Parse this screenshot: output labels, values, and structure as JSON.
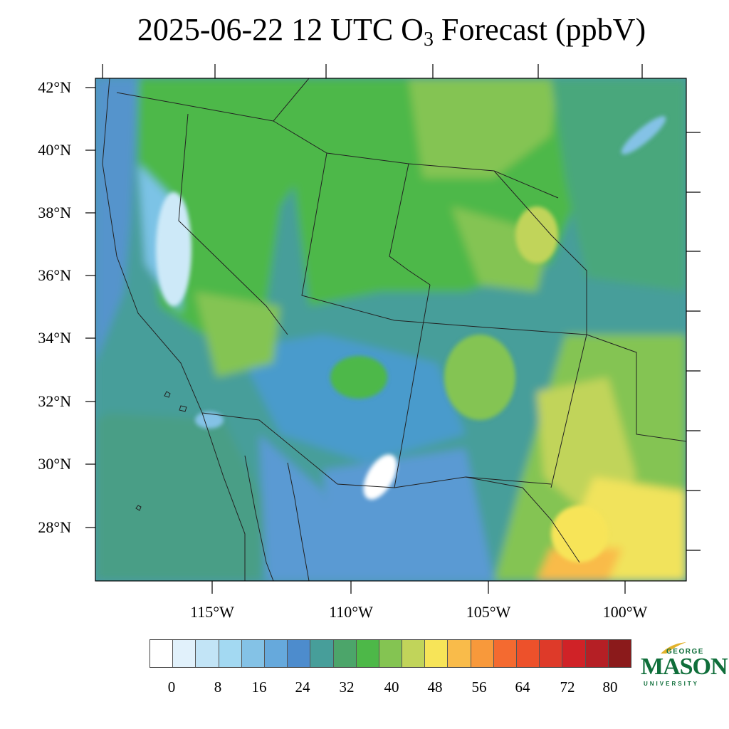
{
  "title": {
    "main": "2025-06-22 12 UTC O",
    "subscript": "3",
    "tail": " Forecast (ppbV)"
  },
  "lat_labels": [
    "42°N",
    "40°N",
    "38°N",
    "36°N",
    "34°N",
    "32°N",
    "30°N",
    "28°N"
  ],
  "lon_labels": [
    "115°W",
    "110°W",
    "105°W",
    "100°W"
  ],
  "colorbar": {
    "colors": [
      "#ffffff",
      "#e1f1fb",
      "#c2e4f6",
      "#a3d9f2",
      "#84c2e6",
      "#66a9dc",
      "#4d8ccd",
      "#479e9a",
      "#4ca56a",
      "#4db848",
      "#84c452",
      "#c1d45a",
      "#f7e458",
      "#f9bb4a",
      "#f8993b",
      "#f46a30",
      "#ed512b",
      "#de3a29",
      "#d02227",
      "#b51f25",
      "#8b1a1b"
    ],
    "labels": [
      "0",
      "8",
      "16",
      "24",
      "32",
      "40",
      "48",
      "56",
      "64",
      "72",
      "80"
    ]
  },
  "logo": {
    "line1": "GEORGE",
    "line2": "MASON",
    "line3": "UNIVERSITY",
    "color": "#0f6e3a",
    "accent": "#e2b22b"
  }
}
